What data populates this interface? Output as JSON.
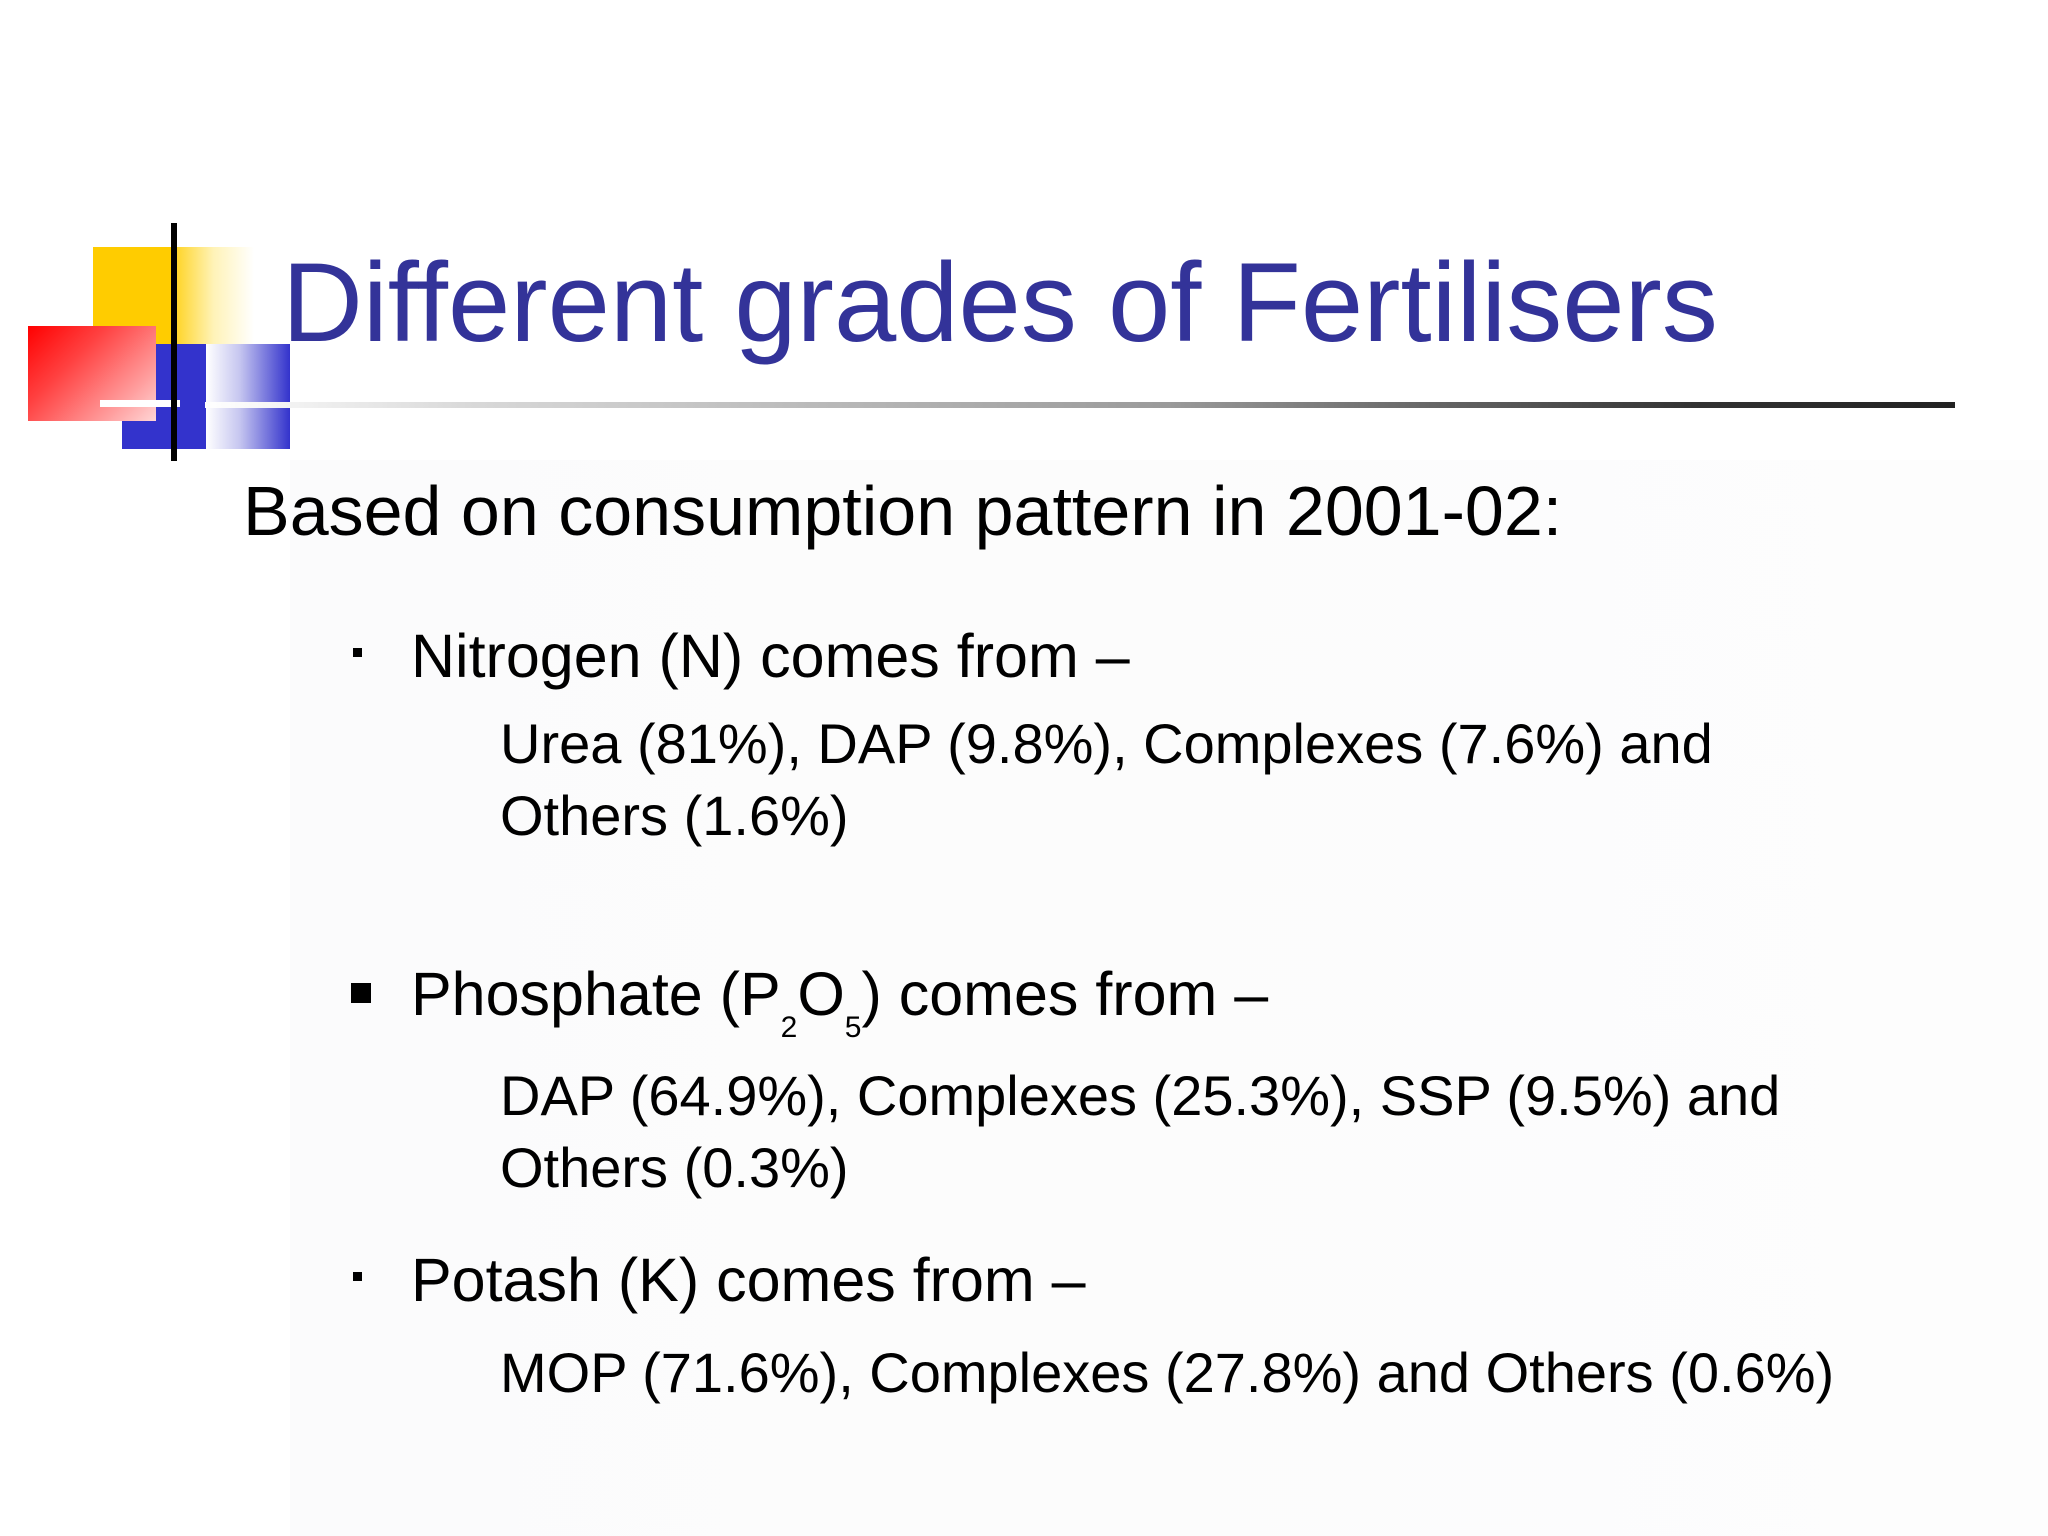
{
  "slide": {
    "title": "Different grades of Fertilisers",
    "intro": "Based on consumption pattern in 2001-02:",
    "bullets": [
      {
        "heading": "Nitrogen (N) comes from –",
        "lines": [
          "Urea (81%), DAP (9.8%), Complexes (7.6%)  and",
          "Others (1.6%)"
        ]
      },
      {
        "heading_parts": {
          "pre": "Phosphate (P",
          "sub1": "2",
          "mid": "O",
          "sub2": "5",
          "post": ") comes from –"
        },
        "lines": [
          "DAP (64.9%), Complexes (25.3%), SSP (9.5%) and",
          "Others (0.3%)"
        ]
      },
      {
        "heading": "Potash (K) comes from –",
        "lines": [
          "MOP (71.6%), Complexes (27.8%) and Others (0.6%)"
        ]
      }
    ]
  },
  "colors": {
    "title": "#333399",
    "yellow": "#ffcc00",
    "blue": "#3333cc",
    "red": "#ff0000"
  }
}
